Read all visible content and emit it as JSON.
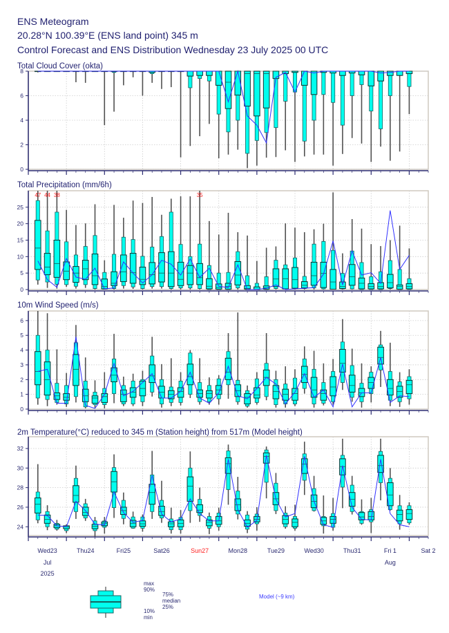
{
  "header": {
    "title": "ENS Meteogram",
    "location": "20.28°N 100.39°E (ENS land point) 345 m",
    "subtitle": "Control Forecast and ENS Distribution Wednesday 23 July 2025 00 UTC"
  },
  "colors": {
    "text": "#1e1e6e",
    "box_fill": "#00ffee",
    "box_stroke": "#1a6060",
    "whisker": "#505050",
    "control_line": "#3030ff",
    "exceed_label": "#ff2020",
    "sunday": "#ff2020"
  },
  "time_axis": {
    "step_hours": 6,
    "range_hours": [
      0,
      252
    ],
    "days": [
      {
        "label": "Wed23",
        "sub": "Jul",
        "year": "2025"
      },
      {
        "label": "Thu24"
      },
      {
        "label": "Fri25"
      },
      {
        "label": "Sat26"
      },
      {
        "label": "Sun27",
        "sunday": true
      },
      {
        "label": "Mon28"
      },
      {
        "label": "Tue29"
      },
      {
        "label": "Wed30"
      },
      {
        "label": "Thu31"
      },
      {
        "label": "Fri 1",
        "sub": "Aug"
      },
      {
        "label": "Sat 2"
      }
    ]
  },
  "legend": {
    "max": "max",
    "p90": "90%",
    "p75": "75%",
    "median": "median",
    "p25": "25%",
    "p10": "10%",
    "min": "min",
    "model": "Model (~9 km)"
  },
  "chart_data": [
    {
      "type": "boxplot",
      "id": "cloud",
      "title": "Total Cloud Cover (okta)",
      "ylim": [
        0,
        8
      ],
      "yticks": [
        0,
        2,
        4,
        6,
        8
      ],
      "min": [
        7.9,
        8,
        8,
        8,
        7.1,
        7.05,
        8,
        3.6,
        4.7,
        6.85,
        7.5,
        6.0,
        7.05,
        6.55,
        6.7,
        0.97,
        1.9,
        2.7,
        3.7,
        0.9,
        1.2,
        1.6,
        0.1,
        0.3,
        0.95,
        1.0,
        1.55,
        0.6,
        1.05,
        1.2,
        1.2,
        0.3,
        1.25,
        2.55,
        2.1,
        0.6,
        1.85,
        0.7,
        1.45,
        4.5
      ],
      "p10": [
        8,
        8,
        8,
        8,
        8,
        8,
        8,
        8,
        7.9,
        8,
        8,
        8,
        7.8,
        8,
        8,
        8,
        6.65,
        7.4,
        7.2,
        4.5,
        3.05,
        4.0,
        1.3,
        2.35,
        3.0,
        3.4,
        5.55,
        6.3,
        2.3,
        4.0,
        6.1,
        5.45,
        3.6,
        6.0,
        6.9,
        4.75,
        3.3,
        6.0,
        7.65,
        6.75
      ],
      "p25": [
        8,
        8,
        8,
        8,
        8,
        8,
        8,
        8,
        8,
        8,
        8,
        8,
        7.9,
        8,
        8,
        8,
        7.6,
        7.65,
        7.65,
        6.85,
        4.95,
        6.05,
        5.15,
        4.35,
        5.0,
        7.4,
        7.8,
        7.9,
        6.85,
        6.1,
        7.9,
        7.85,
        7.65,
        7.85,
        7.7,
        6.8,
        7.2,
        7.65,
        7.65,
        7.8
      ],
      "median": [
        8,
        8,
        8,
        8,
        8,
        8,
        8,
        8,
        8,
        8,
        8,
        8,
        8,
        8,
        8,
        8,
        8,
        8,
        8,
        8,
        7.1,
        8,
        7.8,
        7.8,
        7.8,
        8,
        8,
        8,
        8,
        8,
        8,
        8,
        8,
        8,
        8,
        8,
        8,
        8,
        8,
        8
      ],
      "p75": [
        8,
        8,
        8,
        8,
        8,
        8,
        8,
        8,
        8,
        8,
        8,
        8,
        8,
        8,
        8,
        8,
        8,
        8,
        8,
        8,
        8,
        8,
        8,
        8,
        8,
        8,
        8,
        8,
        8,
        8,
        8,
        8,
        8,
        8,
        8,
        8,
        8,
        8,
        8,
        8
      ],
      "p90": [
        8,
        8,
        8,
        8,
        8,
        8,
        8,
        8,
        8,
        8,
        8,
        8,
        8,
        8,
        8,
        8,
        8,
        8,
        8,
        8,
        8,
        8,
        8,
        8,
        8,
        8,
        8,
        8,
        8,
        8,
        8,
        8,
        8,
        8,
        8,
        8,
        8,
        8,
        8,
        8
      ],
      "max": [
        8,
        8,
        8,
        8,
        8,
        8,
        8,
        8,
        8,
        8,
        8,
        8,
        8,
        8,
        8,
        8,
        8,
        8,
        8,
        8,
        8,
        8,
        8,
        8,
        8,
        8,
        8,
        8,
        8,
        8,
        8,
        8,
        8,
        8,
        8,
        8,
        8,
        8,
        8,
        8
      ],
      "control": [
        8,
        8,
        8,
        8,
        8,
        8,
        8,
        8,
        8,
        8,
        8,
        8,
        8,
        8,
        8,
        8,
        8,
        8,
        8,
        8,
        5.5,
        8,
        4.35,
        3.6,
        2.15,
        7.5,
        7.9,
        6.3,
        8,
        7.85,
        8,
        8,
        8,
        8,
        8,
        8,
        7.85,
        7.9,
        8,
        8
      ]
    },
    {
      "type": "boxplot",
      "id": "precip",
      "title": "Total Precipitation (mm/6h)",
      "ylim": [
        0,
        30
      ],
      "yticks": [
        0,
        5,
        10,
        15,
        20,
        25
      ],
      "min": [
        1.5,
        0.5,
        0.3,
        0.8,
        0.3,
        0.5,
        0,
        0,
        0,
        0.3,
        0.2,
        0,
        0.3,
        0.3,
        0,
        0,
        0,
        0,
        0,
        0,
        0,
        0,
        0,
        0,
        0,
        0,
        0,
        0,
        0,
        0,
        0,
        0,
        0,
        0,
        0,
        0,
        0,
        0,
        0,
        0
      ],
      "p10": [
        2.9,
        2.3,
        1.6,
        1.5,
        1.0,
        1.5,
        0.3,
        0.1,
        0.3,
        1.2,
        0.8,
        0.3,
        0.9,
        0.9,
        0.3,
        0.5,
        0.5,
        0.3,
        0,
        0,
        0,
        0.5,
        0,
        0,
        0,
        0.3,
        0.1,
        0.3,
        0.3,
        0.5,
        0.2,
        0.1,
        0.2,
        0.2,
        0,
        0,
        0,
        0.3,
        0,
        0
      ],
      "p25": [
        6.1,
        4.5,
        3.7,
        3.0,
        2.2,
        3.0,
        1.5,
        0.2,
        1.2,
        2.4,
        1.9,
        1.5,
        1.7,
        2.3,
        0.9,
        1.2,
        1.5,
        1.5,
        0.2,
        0.1,
        0.1,
        1.4,
        0.1,
        0,
        0.1,
        0.9,
        0.2,
        0.4,
        0.5,
        1.3,
        0.6,
        0.1,
        0.3,
        1.3,
        0.2,
        0.2,
        0.2,
        0.5,
        0.1,
        0.2
      ],
      "median": [
        12.6,
        6.8,
        7.9,
        5.6,
        5.0,
        6.3,
        4.2,
        0.9,
        1.9,
        5.4,
        5.1,
        3.1,
        4.5,
        5.0,
        5.0,
        3.1,
        5.0,
        3.6,
        1.0,
        0.6,
        0.9,
        4.4,
        0.3,
        0.1,
        0.5,
        3.2,
        3.3,
        3.0,
        1.3,
        4.2,
        4.9,
        2.3,
        0.9,
        3.9,
        1.9,
        0.9,
        0.9,
        2.1,
        0.9,
        0.9
      ],
      "p75": [
        21.0,
        11.0,
        15.0,
        8.4,
        7.0,
        8.9,
        10.8,
        3.2,
        5.4,
        10.5,
        11.0,
        6.8,
        8.2,
        11.2,
        11.5,
        8.3,
        7.3,
        7.9,
        3.3,
        1.7,
        1.9,
        8.5,
        1.2,
        0.8,
        1.1,
        6.3,
        6.3,
        6.7,
        2.4,
        8.3,
        8.3,
        6.1,
        2.3,
        7.6,
        3.5,
        1.8,
        2.1,
        4.6,
        1.4,
        1.8
      ],
      "p90": [
        27.0,
        17.8,
        23.5,
        14.5,
        10.5,
        13.1,
        16.4,
        5.2,
        10.7,
        15.9,
        15.2,
        10.1,
        12.9,
        16.1,
        23.5,
        13.7,
        10.0,
        13.8,
        7.3,
        5.0,
        5.2,
        11.5,
        4.2,
        1.9,
        3.9,
        8.9,
        7.5,
        9.6,
        4.0,
        13.8,
        14.6,
        11.9,
        4.9,
        11.7,
        8.2,
        3.9,
        5.4,
        8.8,
        6.1,
        3.3
      ],
      "max": [
        47,
        44,
        38,
        24.2,
        19.6,
        20.1,
        25.9,
        8.9,
        25.7,
        21.8,
        27.0,
        26.3,
        28.1,
        22.7,
        27.6,
        28.3,
        28.3,
        35,
        20.8,
        16.7,
        23.3,
        17.4,
        16.4,
        8.7,
        12.7,
        13.1,
        20.1,
        18.8,
        17.4,
        18.3,
        20.0,
        29.5,
        11.0,
        21.4,
        18.5,
        13.8,
        13.2,
        15.0,
        19.4,
        12.5
      ],
      "control": [
        8.7,
        3.0,
        0.7,
        9.4,
        3.8,
        3.1,
        6.5,
        0.2,
        0.5,
        8.4,
        5.0,
        2.0,
        4.5,
        8.9,
        7.7,
        4.4,
        9.3,
        3.7,
        6.5,
        1.0,
        0.6,
        7.5,
        0,
        0,
        0.4,
        1.4,
        0,
        0.2,
        0.4,
        0.6,
        4.7,
        14.8,
        1.4,
        11.7,
        4.4,
        5.1,
        1.9,
        24.0,
        6.1,
        10.4
      ]
    },
    {
      "type": "boxplot",
      "id": "wind",
      "title": "10m Wind Speed (m/s)",
      "ylim": [
        0,
        6.65
      ],
      "yticks": [
        0,
        1,
        2,
        3,
        4,
        5,
        6
      ],
      "min": [
        0.3,
        0.2,
        0.3,
        0.15,
        0.45,
        0.05,
        0.1,
        0.05,
        0.4,
        0.2,
        0.2,
        0.2,
        0.85,
        0.1,
        0.2,
        0.25,
        0.75,
        0.3,
        0.3,
        0.3,
        0.7,
        0.3,
        0.1,
        0.3,
        0.6,
        0.1,
        0.1,
        0.2,
        1.05,
        0.1,
        0.25,
        0.3,
        1.3,
        0.5,
        0.1,
        0.45,
        1.5,
        0.2,
        0.15,
        0.3
      ],
      "p10": [
        0.75,
        0.65,
        0.45,
        0.35,
        0.85,
        0.15,
        0.3,
        0.3,
        1.05,
        0.35,
        0.35,
        0.5,
        1.15,
        0.35,
        0.45,
        0.45,
        1.0,
        0.5,
        0.5,
        0.7,
        1.65,
        0.5,
        0.2,
        0.45,
        0.85,
        0.3,
        0.35,
        0.35,
        1.4,
        0.35,
        0.4,
        0.5,
        1.8,
        0.8,
        0.5,
        1.05,
        2.65,
        0.6,
        0.5,
        0.7
      ],
      "p25": [
        1.65,
        0.95,
        0.65,
        0.6,
        1.6,
        0.5,
        0.4,
        0.45,
        1.85,
        0.5,
        0.8,
        0.9,
        1.8,
        0.75,
        0.7,
        0.8,
        1.65,
        0.8,
        0.75,
        1.0,
        2.0,
        0.85,
        0.35,
        0.75,
        1.6,
        0.7,
        0.6,
        0.6,
        1.8,
        0.8,
        0.6,
        0.9,
        2.5,
        1.15,
        0.85,
        1.4,
        3.05,
        0.95,
        0.8,
        1.05
      ],
      "median": [
        2.55,
        2.0,
        0.9,
        0.8,
        2.7,
        0.9,
        0.75,
        0.85,
        2.3,
        1.0,
        1.15,
        1.4,
        2.25,
        1.15,
        1.0,
        1.2,
        2.2,
        1.05,
        1.05,
        1.3,
        2.5,
        1.25,
        0.8,
        0.95,
        2.15,
        1.2,
        1.0,
        1.05,
        2.35,
        1.3,
        1.05,
        1.5,
        3.1,
        1.6,
        1.1,
        1.8,
        3.5,
        1.4,
        1.2,
        1.65
      ],
      "p75": [
        3.9,
        3.2,
        1.1,
        1.05,
        3.7,
        1.35,
        0.9,
        1.05,
        2.8,
        1.3,
        1.45,
        1.9,
        3.0,
        1.55,
        1.25,
        1.45,
        3.05,
        1.3,
        1.25,
        1.6,
        3.45,
        1.65,
        1.05,
        1.45,
        2.65,
        1.6,
        1.35,
        1.4,
        2.9,
        2.15,
        1.3,
        2.2,
        4.05,
        2.3,
        1.4,
        2.15,
        4.2,
        2.0,
        1.55,
        1.95
      ],
      "p90": [
        5.0,
        4.0,
        1.75,
        1.6,
        4.5,
        1.9,
        1.15,
        1.4,
        3.4,
        1.6,
        1.9,
        2.0,
        3.6,
        2.0,
        1.5,
        1.9,
        3.8,
        1.8,
        1.6,
        2.05,
        3.9,
        1.95,
        1.25,
        2.05,
        3.1,
        2.0,
        1.7,
        2.1,
        3.4,
        2.7,
        1.8,
        2.55,
        4.55,
        2.95,
        1.75,
        2.5,
        4.35,
        2.55,
        1.85,
        2.2
      ],
      "max": [
        6.65,
        6.5,
        4.05,
        2.45,
        5.7,
        3.5,
        1.95,
        2.5,
        5.1,
        2.2,
        2.4,
        2.6,
        4.9,
        3.05,
        3.45,
        2.5,
        4.0,
        3.45,
        2.15,
        2.3,
        5.15,
        6.55,
        1.6,
        2.5,
        5.15,
        2.6,
        2.9,
        2.7,
        4.25,
        3.95,
        3.1,
        3.4,
        6.1,
        4.1,
        3.1,
        2.9,
        5.3,
        4.5,
        2.5,
        2.7
      ],
      "control": [
        2.55,
        2.7,
        0.4,
        0.4,
        4.9,
        0.25,
        0.05,
        1.0,
        3.1,
        0.9,
        1.2,
        1.8,
        2.4,
        0.75,
        0.75,
        1.2,
        2.5,
        0.75,
        0.4,
        1.1,
        2.9,
        0.9,
        0.7,
        1.4,
        2.15,
        1.7,
        0.35,
        1.15,
        2.4,
        0.8,
        1.3,
        0.15,
        3.05,
        0.15,
        1.1,
        1.1,
        3.5,
        0.45,
        0.9,
        0.85
      ]
    },
    {
      "type": "boxplot",
      "id": "temp",
      "title": "2m Temperature(°C) reduced to 345 m (Station height) from 517m (Model height)",
      "ylim": [
        23.1,
        33.2
      ],
      "yticks": [
        24,
        26,
        28,
        30,
        32
      ],
      "min": [
        24.35,
        23.65,
        23.6,
        23.35,
        24.8,
        24.6,
        23.0,
        23.3,
        24.9,
        24.25,
        23.8,
        23.5,
        24.8,
        24.4,
        23.3,
        23.3,
        24.4,
        24.5,
        23.25,
        23.6,
        26.25,
        24.75,
        23.35,
        23.6,
        26.9,
        25.3,
        23.8,
        23.6,
        27.25,
        25.55,
        23.3,
        23.6,
        25.9,
        25.25,
        24.2,
        23.35,
        26.7,
        25.65,
        23.7,
        24.2
      ],
      "p10": [
        24.7,
        24.0,
        23.75,
        23.6,
        25.55,
        24.9,
        23.6,
        23.95,
        25.95,
        24.85,
        23.85,
        23.85,
        25.55,
        24.9,
        23.7,
        23.7,
        25.65,
        25.15,
        23.85,
        24.0,
        27.8,
        25.3,
        23.75,
        24.3,
        28.55,
        25.65,
        24.0,
        23.85,
        28.75,
        25.65,
        24.1,
        23.95,
        28.05,
        25.55,
        24.35,
        24.5,
        28.5,
        25.75,
        24.3,
        24.4
      ],
      "p25": [
        25.4,
        24.35,
        23.9,
        23.8,
        26.5,
        25.15,
        23.8,
        24.1,
        27.55,
        25.25,
        24.0,
        24.05,
        26.3,
        25.15,
        24.0,
        24.0,
        26.6,
        25.45,
        24.1,
        24.25,
        29.45,
        25.65,
        24.05,
        24.5,
        30.5,
        26.25,
        24.3,
        24.0,
        29.45,
        25.95,
        24.25,
        24.35,
        29.3,
        26.1,
        24.7,
        24.7,
        29.55,
        26.15,
        24.6,
        24.75
      ],
      "median": [
        26.3,
        24.75,
        24.1,
        24.0,
        27.2,
        25.45,
        24.05,
        24.35,
        28.6,
        25.65,
        24.35,
        24.3,
        27.5,
        25.55,
        24.3,
        24.35,
        28.15,
        25.7,
        24.45,
        24.6,
        30.45,
        26.25,
        24.35,
        24.75,
        31.2,
        26.85,
        24.75,
        24.45,
        30.4,
        26.6,
        24.6,
        24.75,
        30.15,
        26.8,
        25.0,
        25.05,
        30.25,
        27.25,
        25.25,
        25.35
      ],
      "p75": [
        26.95,
        25.2,
        24.25,
        24.1,
        28.2,
        26.0,
        24.25,
        24.5,
        29.65,
        26.0,
        24.65,
        24.6,
        28.35,
        26.1,
        24.5,
        24.7,
        29.1,
        26.25,
        24.7,
        25.05,
        31.05,
        26.85,
        24.7,
        25.05,
        31.55,
        27.5,
        25.15,
        24.8,
        30.95,
        27.25,
        24.95,
        25.05,
        30.95,
        27.5,
        25.45,
        25.55,
        31.3,
        28.5,
        25.7,
        25.75
      ],
      "p90": [
        27.55,
        25.55,
        24.35,
        24.1,
        28.95,
        26.35,
        24.6,
        24.6,
        30.05,
        26.7,
        25.0,
        25.0,
        29.3,
        26.7,
        24.8,
        24.95,
        30.0,
        26.8,
        25.05,
        25.4,
        31.75,
        27.65,
        25.2,
        25.3,
        31.85,
        28.45,
        25.4,
        25.05,
        31.45,
        27.9,
        25.05,
        25.35,
        31.3,
        28.25,
        25.55,
        25.75,
        31.7,
        28.95,
        26.15,
        26.15
      ],
      "max": [
        30.4,
        26.2,
        24.7,
        24.25,
        30.25,
        26.85,
        25.0,
        25.0,
        31.4,
        27.5,
        25.55,
        25.25,
        31.75,
        28.7,
        25.95,
        25.7,
        31.7,
        28.0,
        25.45,
        25.95,
        32.4,
        29.1,
        25.6,
        26.0,
        32.2,
        29.5,
        26.1,
        26.25,
        32.7,
        29.2,
        27.2,
        26.95,
        33.0,
        29.2,
        26.8,
        26.95,
        33.0,
        30.0,
        27.25,
        26.5
      ],
      "control": [
        25.2,
        25.15,
        24.1,
        24.0,
        26.6,
        25.65,
        24.25,
        24.2,
        27.55,
        25.45,
        24.45,
        24.65,
        29.25,
        25.3,
        24.5,
        24.8,
        26.85,
        25.35,
        24.6,
        24.6,
        30.9,
        25.75,
        23.95,
        24.65,
        31.3,
        26.8,
        25.0,
        25.35,
        31.2,
        26.6,
        24.2,
        23.95,
        30.25,
        26.0,
        24.75,
        24.7,
        30.9,
        25.35,
        24.2,
        24.0
      ]
    }
  ]
}
